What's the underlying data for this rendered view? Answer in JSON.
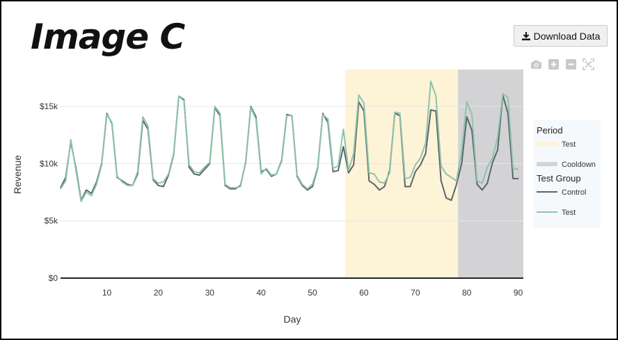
{
  "page": {
    "title": "Image C",
    "download_label": "Download Data"
  },
  "toolbar": {
    "icons": [
      "camera-icon",
      "zoom-in-icon",
      "zoom-out-icon",
      "autoscale-icon"
    ]
  },
  "chart_data": {
    "type": "line",
    "xlabel": "Day",
    "ylabel": "Revenue",
    "xlim": [
      1,
      91
    ],
    "ylim": [
      0,
      17500
    ],
    "x_ticks": [
      10,
      20,
      30,
      40,
      50,
      60,
      70,
      80,
      90
    ],
    "x_tick_labels": [
      "10",
      "20",
      "30",
      "40",
      "50",
      "60",
      "70",
      "80",
      "90"
    ],
    "y_ticks": [
      0,
      5000,
      10000,
      15000
    ],
    "y_tick_labels": [
      "$0",
      "$5k",
      "$10k",
      "$15k"
    ],
    "grid": "horizontal",
    "legend_position": "right",
    "legend_groups": [
      {
        "title": "Period",
        "items": [
          {
            "label": "Test",
            "kind": "box",
            "color": "#fdf3d6"
          },
          {
            "label": "Cooldown",
            "kind": "box",
            "color": "#d3d3d5"
          }
        ]
      },
      {
        "title": "Test Group",
        "items": [
          {
            "label": "Control",
            "kind": "line",
            "color": "#5b6470"
          },
          {
            "label": "Test",
            "kind": "line",
            "color": "#8ec3a7"
          }
        ]
      }
    ],
    "periods": [
      {
        "name": "Test",
        "start": 56.3,
        "end": 78.3,
        "color": "#fdf3d6"
      },
      {
        "name": "Cooldown",
        "start": 78.3,
        "end": 91,
        "color": "#d3d3d5"
      }
    ],
    "x": [
      1,
      2,
      3,
      4,
      5,
      6,
      7,
      8,
      9,
      10,
      11,
      12,
      13,
      14,
      15,
      16,
      17,
      18,
      19,
      20,
      21,
      22,
      23,
      24,
      25,
      26,
      27,
      28,
      29,
      30,
      31,
      32,
      33,
      34,
      35,
      36,
      37,
      38,
      39,
      40,
      41,
      42,
      43,
      44,
      45,
      46,
      47,
      48,
      49,
      50,
      51,
      52,
      53,
      54,
      55,
      56,
      57,
      58,
      59,
      60,
      61,
      62,
      63,
      64,
      65,
      66,
      67,
      68,
      69,
      70,
      71,
      72,
      73,
      74,
      75,
      76,
      77,
      78,
      79,
      80,
      81,
      82,
      83,
      84,
      85,
      86,
      87,
      88,
      89,
      90
    ],
    "series": [
      {
        "name": "Control",
        "color": "#5b6470",
        "values": [
          7900,
          8800,
          11900,
          9600,
          6800,
          7700,
          7400,
          8400,
          10000,
          14400,
          13500,
          8800,
          8500,
          8200,
          8100,
          9100,
          13800,
          13000,
          8600,
          8100,
          8000,
          9000,
          10800,
          15900,
          15600,
          9700,
          9100,
          9000,
          9500,
          10000,
          14900,
          14200,
          8100,
          7800,
          7800,
          8100,
          10100,
          15000,
          14100,
          9300,
          9500,
          8900,
          9100,
          10300,
          14300,
          14200,
          8900,
          8100,
          7700,
          8000,
          9600,
          14400,
          13600,
          9300,
          9400,
          11500,
          9200,
          9900,
          15400,
          14600,
          8500,
          8200,
          7700,
          8000,
          9400,
          14400,
          14200,
          8000,
          8000,
          9300,
          9900,
          10900,
          14700,
          14600,
          8500,
          7000,
          6800,
          8200,
          10000,
          14100,
          12900,
          8200,
          7700,
          8300,
          10100,
          11200,
          16000,
          14400,
          8700,
          8700
        ]
      },
      {
        "name": "Test",
        "color": "#8ec3a7",
        "values": [
          7800,
          8500,
          12100,
          9400,
          6700,
          7500,
          7200,
          8200,
          9900,
          14300,
          13600,
          8900,
          8400,
          8100,
          8100,
          9300,
          14100,
          13300,
          8700,
          8300,
          8400,
          9100,
          10900,
          15900,
          15500,
          9900,
          9300,
          9200,
          9700,
          10100,
          15000,
          14400,
          8200,
          7900,
          7900,
          8000,
          10200,
          14900,
          13900,
          9100,
          9600,
          9000,
          9100,
          10200,
          14200,
          14200,
          9000,
          8200,
          7800,
          8200,
          9700,
          14300,
          13900,
          9600,
          9800,
          13000,
          9400,
          10900,
          16000,
          15300,
          9200,
          9100,
          8400,
          8300,
          9200,
          14500,
          14400,
          8700,
          8800,
          9900,
          10500,
          11800,
          17200,
          15900,
          9800,
          9100,
          8800,
          8500,
          11100,
          15400,
          14300,
          8500,
          8300,
          9700,
          10500,
          12300,
          16100,
          15800,
          9600,
          9500
        ]
      }
    ]
  }
}
